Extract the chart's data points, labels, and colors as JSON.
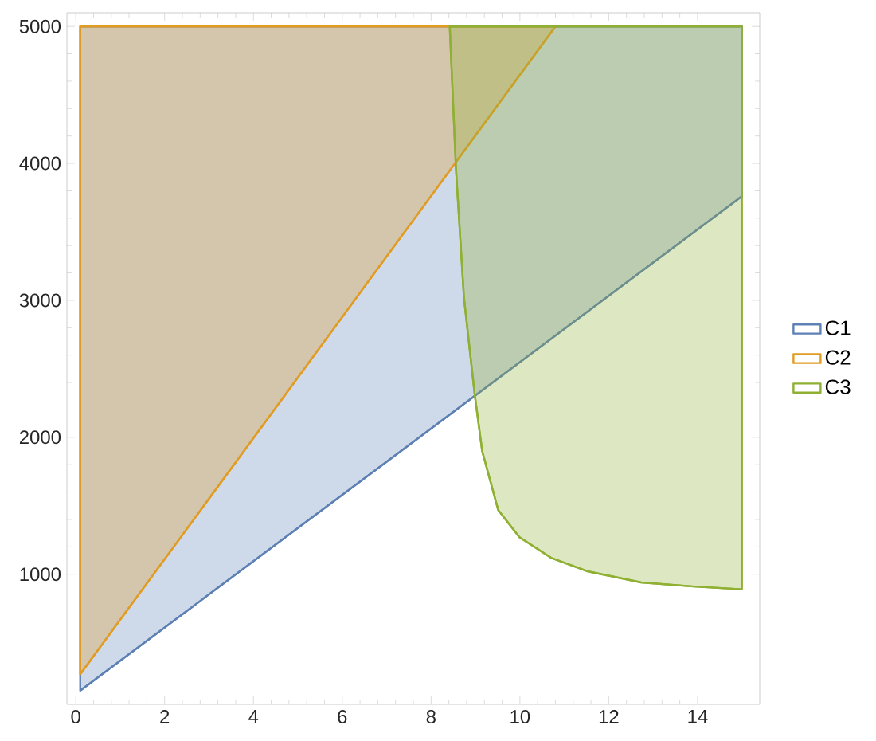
{
  "chart_data": {
    "type": "line",
    "xlim": [
      -0.2,
      15.4
    ],
    "ylim": [
      50,
      5100
    ],
    "xticks": [
      0,
      2,
      4,
      6,
      8,
      10,
      12,
      14
    ],
    "yticks": [
      1000,
      2000,
      3000,
      4000,
      5000
    ],
    "grid": false,
    "legend": "right",
    "marker": "none",
    "line_style": "solid",
    "series": [
      {
        "name": "C1",
        "color": "#5e81b5",
        "x": [
          0.1,
          15
        ],
        "values": [
          150,
          3760
        ],
        "lower": [
          150,
          3760
        ],
        "upper": [
          5000,
          5000
        ]
      },
      {
        "name": "C2",
        "color": "#e19c24",
        "x": [
          0.1,
          10.8
        ],
        "values": [
          270,
          5000
        ],
        "lower": [
          270,
          5000
        ],
        "upper": [
          5000,
          5000
        ]
      },
      {
        "name": "C3",
        "color": "#8fb032",
        "x": [
          8.42,
          8.56,
          8.74,
          8.98,
          9.15,
          9.51,
          9.99,
          10.7,
          11.54,
          12.73,
          13.92,
          15
        ],
        "values": [
          5000,
          3960,
          3020,
          2320,
          1900,
          1470,
          1270,
          1120,
          1020,
          940,
          910,
          890
        ],
        "lower": [
          5000,
          3960,
          3020,
          2320,
          1900,
          1470,
          1270,
          1120,
          1020,
          940,
          910,
          890
        ],
        "upper": [
          5000,
          5000,
          5000,
          5000,
          5000,
          5000,
          5000,
          5000,
          5000,
          5000,
          5000,
          5000
        ]
      }
    ]
  }
}
